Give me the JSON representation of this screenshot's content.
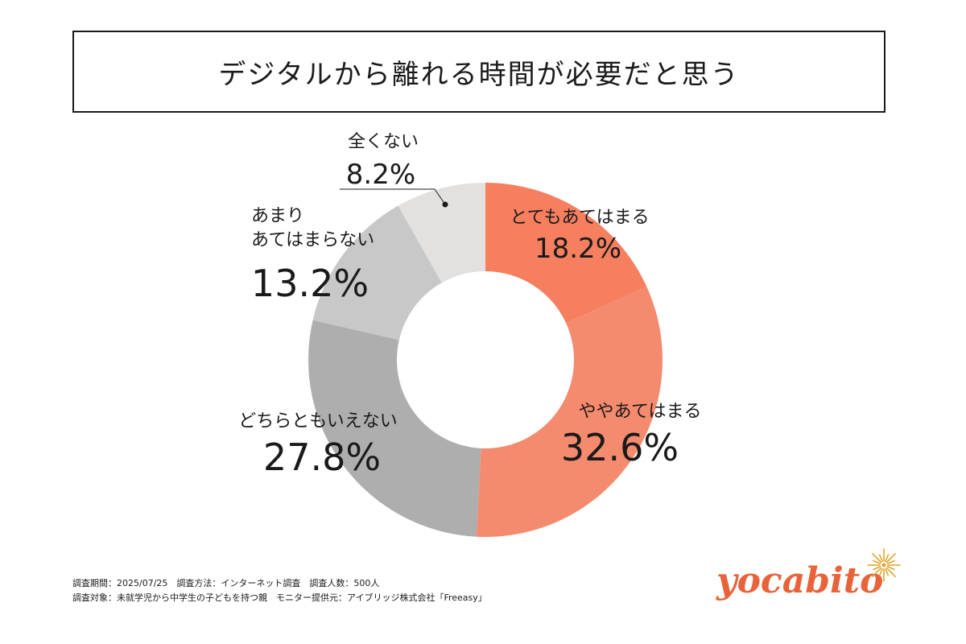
{
  "title": "デジタルから離れる時間が必要だと思う",
  "chart_data": {
    "type": "pie",
    "donut": true,
    "categories": [
      "とてもあてはまる",
      "ややあてはまる",
      "どちらともいえない",
      "あまり\nあてはまらない",
      "全くない"
    ],
    "values": [
      18.2,
      32.6,
      27.8,
      13.2,
      8.2
    ],
    "value_labels": [
      "18.2%",
      "32.6%",
      "27.8%",
      "13.2%",
      "8.2%"
    ],
    "colors": [
      "#f57f5f",
      "#f58b6e",
      "#aeaeae",
      "#c9c8c8",
      "#e3e0e0"
    ],
    "start": "12 o'clock, clockwise",
    "legend": "labels on chart"
  },
  "notes": {
    "line1": "調査期間：2025/07/25　調査方法：インターネット調査　調査人数：500人",
    "line2": "調査対象：未就学児から中学生の子どもを持つ親　モニター提供元：アイブリッジ株式会社「Freeasy」"
  },
  "logo": {
    "text": "yocabito",
    "color": "#e8633a",
    "spark_color": "#e0a42a",
    "icon": "sparkle-icon"
  }
}
